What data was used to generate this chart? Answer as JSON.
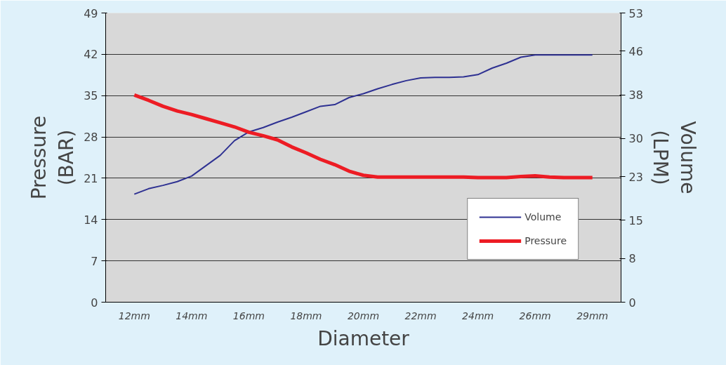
{
  "chart_data": {
    "type": "line",
    "xlabel": "Diameter",
    "ylabel": "Pressure (BAR)",
    "y2label": "Volume (LPM)",
    "categories": [
      "12mm",
      null,
      null,
      null,
      "14mm",
      null,
      null,
      null,
      "16mm",
      null,
      null,
      null,
      "18mm",
      null,
      null,
      null,
      "20mm",
      null,
      null,
      null,
      "22mm",
      null,
      null,
      null,
      "24mm",
      null,
      null,
      null,
      "26mm",
      null,
      null,
      null,
      "29mm"
    ],
    "ylim": [
      0,
      49
    ],
    "yticks": [
      0,
      7,
      14,
      21,
      28,
      35,
      42,
      49
    ],
    "y2lim": [
      0,
      53
    ],
    "y2ticks": [
      0,
      8,
      15,
      23,
      30,
      38,
      46,
      53
    ],
    "grid": "y",
    "legend": "bottom right",
    "series": [
      {
        "name": "Volume",
        "color": "#2e3192",
        "axis": "y2",
        "values": [
          19.8,
          20.8,
          21.4,
          22.1,
          23.1,
          25.0,
          26.9,
          29.6,
          31.2,
          32.0,
          33.0,
          33.9,
          34.9,
          35.9,
          36.2,
          37.5,
          38.2,
          39.1,
          39.9,
          40.6,
          41.1,
          41.2,
          41.2,
          41.3,
          41.7,
          42.9,
          43.8,
          44.9,
          45.3,
          45.3,
          45.3,
          45.3,
          45.3
        ]
      },
      {
        "name": "Pressure",
        "color": "#ed1c24",
        "values": [
          35.1,
          34.2,
          33.2,
          32.4,
          31.8,
          31.1,
          30.4,
          29.7,
          28.8,
          28.2,
          27.5,
          26.3,
          25.3,
          24.2,
          23.3,
          22.2,
          21.5,
          21.2,
          21.2,
          21.2,
          21.2,
          21.2,
          21.2,
          21.2,
          21.1,
          21.1,
          21.1,
          21.3,
          21.4,
          21.2,
          21.1,
          21.1,
          21.1
        ]
      }
    ]
  }
}
